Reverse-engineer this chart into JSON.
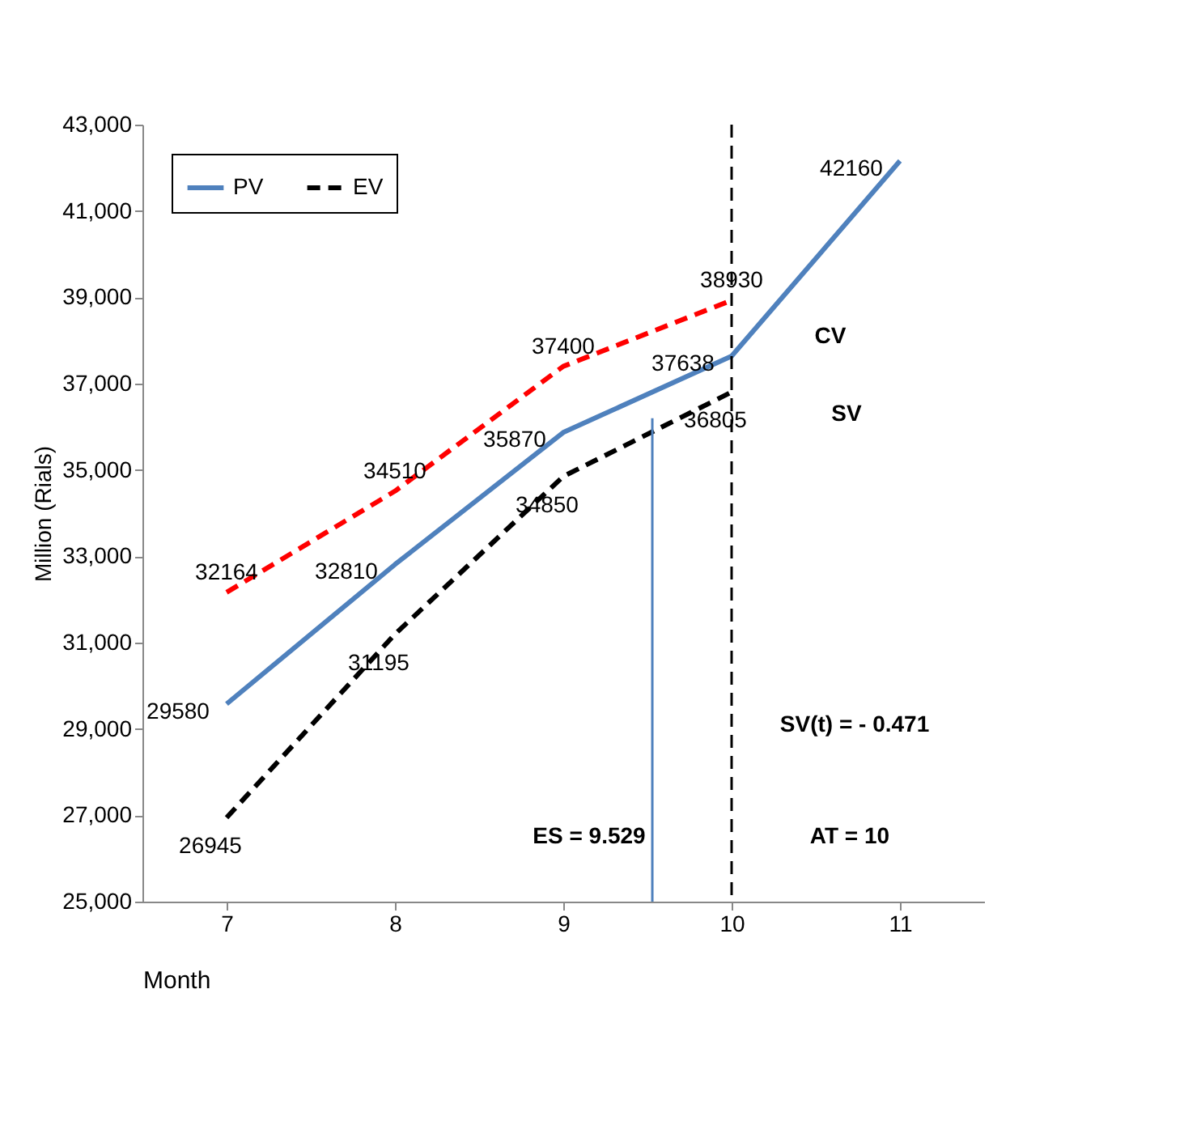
{
  "chart_data": {
    "type": "line",
    "xlabel": "Month",
    "ylabel": "Million (Rials)",
    "x": [
      7,
      8,
      9,
      10,
      11
    ],
    "xlim": [
      6.5,
      11.5
    ],
    "xticks": [
      7,
      8,
      9,
      10,
      11
    ],
    "ylim": [
      25000,
      43000
    ],
    "yticks": [
      {
        "value": 25000,
        "label": "25,000"
      },
      {
        "value": 27000,
        "label": "27,000"
      },
      {
        "value": 29000,
        "label": "29,000"
      },
      {
        "value": 31000,
        "label": "31,000"
      },
      {
        "value": 33000,
        "label": "33,000"
      },
      {
        "value": 35000,
        "label": "35,000"
      },
      {
        "value": 37000,
        "label": "37,000"
      },
      {
        "value": 39000,
        "label": "39,000"
      },
      {
        "value": 41000,
        "label": "41,000"
      },
      {
        "value": 43000,
        "label": "43,000"
      }
    ],
    "grid": false,
    "legend": "top left",
    "marker": "none",
    "series": [
      {
        "name": "PV",
        "color": "#4f81bd",
        "line_style": "solid",
        "values": [
          29580,
          32810,
          35870,
          37638,
          42160
        ],
        "value_labels": [
          "29580",
          "32810",
          "35870",
          "37638",
          "42160"
        ]
      },
      {
        "name": "EV",
        "color": "#000000",
        "line_style": "dashed",
        "values": [
          26945,
          31195,
          34850,
          36805,
          null
        ],
        "value_labels": [
          "26945",
          "31195",
          "34850",
          "36805",
          null
        ]
      },
      {
        "color": "#ff0000",
        "line_style": "dashed",
        "values": [
          32164,
          34510,
          37400,
          38930,
          null
        ],
        "value_labels": [
          "32164",
          "34510",
          "37400",
          "38930",
          null
        ]
      },
      {
        "color": "#4f81bd",
        "line_style": "solid",
        "x": [
          9.529,
          9.529
        ],
        "values": [
          25000,
          36200
        ]
      }
    ],
    "ref_lines": [
      {
        "axis": "x",
        "value": 10,
        "color": "#000000",
        "line_style": "dashed"
      }
    ],
    "annotations": [
      "ES = 9.529",
      "AT = 10",
      "SV(t) = - 0.471",
      "CV",
      "SV"
    ]
  }
}
